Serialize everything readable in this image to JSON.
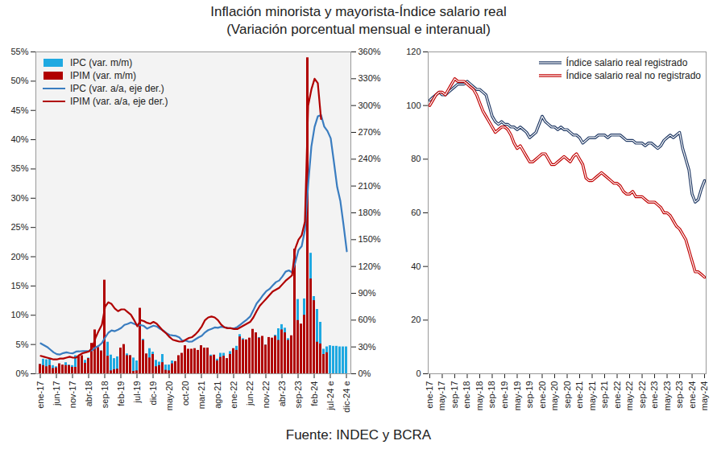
{
  "title": "Inflación minorista y mayorista-Índice salario real",
  "subtitle": "(Variación porcentual mensual e interanual)",
  "caption": "Fuente: INDEC y BCRA",
  "chart_data": [
    {
      "type": "bar",
      "legend": "top-left",
      "categories": [
        "ene-17",
        null,
        null,
        null,
        null,
        "jun-17",
        null,
        null,
        null,
        null,
        "nov-17",
        null,
        null,
        null,
        null,
        "abr-18",
        null,
        null,
        null,
        null,
        "sep-18",
        null,
        null,
        null,
        null,
        "feb-19",
        null,
        null,
        null,
        null,
        "jul-19",
        null,
        null,
        null,
        null,
        "dic-19",
        null,
        null,
        null,
        null,
        "may-20",
        null,
        null,
        null,
        null,
        "oct-20",
        null,
        null,
        null,
        null,
        "mar-21",
        null,
        null,
        null,
        null,
        "ago-21",
        null,
        null,
        null,
        null,
        "ene-22",
        null,
        null,
        null,
        null,
        "jun-22",
        null,
        null,
        null,
        null,
        "nov-22",
        null,
        null,
        null,
        null,
        "abr-23",
        null,
        null,
        null,
        null,
        "sep-23",
        null,
        null,
        null,
        null,
        "feb-24",
        null,
        null,
        null,
        null,
        "jul-24 e",
        null,
        null,
        null,
        null,
        "dic-24 e"
      ],
      "ylim": [
        0,
        55
      ],
      "yticks": [
        {
          "value": 0,
          "label": "0%"
        },
        {
          "value": 5,
          "label": "5%"
        },
        {
          "value": 10,
          "label": "10%"
        },
        {
          "value": 15,
          "label": "15%"
        },
        {
          "value": 20,
          "label": "20%"
        },
        {
          "value": 25,
          "label": "25%"
        },
        {
          "value": 30,
          "label": "30%"
        },
        {
          "value": 35,
          "label": "35%"
        },
        {
          "value": 40,
          "label": "40%"
        },
        {
          "value": 45,
          "label": "45%"
        },
        {
          "value": 50,
          "label": "50%"
        },
        {
          "value": 55,
          "label": "55%"
        }
      ],
      "y2lim": [
        0,
        360
      ],
      "y2ticks": [
        {
          "value": 0,
          "label": "0%"
        },
        {
          "value": 30,
          "label": "30%"
        },
        {
          "value": 60,
          "label": "60%"
        },
        {
          "value": 90,
          "label": "90%"
        },
        {
          "value": 120,
          "label": "120%"
        },
        {
          "value": 150,
          "label": "150%"
        },
        {
          "value": 180,
          "label": "180%"
        },
        {
          "value": 210,
          "label": "210%"
        },
        {
          "value": 240,
          "label": "240%"
        },
        {
          "value": 270,
          "label": "270%"
        },
        {
          "value": 300,
          "label": "300%"
        },
        {
          "value": 330,
          "label": "330%"
        },
        {
          "value": 360,
          "label": "360%"
        }
      ],
      "series": [
        {
          "name": "IPC (var. m/m)",
          "type": "bar",
          "color": "#1fa9e1",
          "values": [
            1.6,
            2.5,
            2.4,
            2.6,
            1.4,
            1.2,
            1.7,
            1.4,
            1.9,
            1.5,
            1.4,
            3.1,
            1.8,
            2.4,
            2.3,
            2.7,
            2.1,
            3.7,
            3.1,
            3.9,
            6.5,
            5.4,
            3.2,
            2.6,
            2.9,
            3.8,
            4.7,
            3.4,
            3.1,
            2.7,
            2.2,
            4.0,
            5.9,
            3.3,
            4.3,
            3.7,
            2.3,
            2.0,
            3.3,
            1.5,
            1.5,
            2.2,
            1.9,
            2.7,
            2.8,
            3.8,
            3.2,
            4.0,
            4.0,
            3.6,
            4.8,
            4.1,
            3.3,
            3.2,
            3.0,
            2.5,
            3.5,
            3.5,
            2.5,
            3.8,
            3.9,
            4.7,
            6.7,
            6.0,
            5.1,
            5.3,
            7.4,
            7.0,
            6.2,
            6.3,
            4.9,
            5.1,
            6.0,
            6.6,
            7.7,
            8.4,
            7.8,
            6.0,
            6.3,
            12.4,
            12.7,
            8.3,
            12.8,
            25.5,
            20.6,
            13.2,
            11.0,
            8.8,
            4.2,
            4.6,
            4.8,
            4.7,
            4.7,
            4.6,
            4.6,
            4.6
          ]
        },
        {
          "name": "IPIM (var. m/m)",
          "type": "bar",
          "color": "#b00000",
          "values": [
            1.6,
            1.4,
            1.2,
            1.4,
            0.9,
            1.0,
            1.7,
            1.5,
            1.4,
            1.4,
            1.1,
            1.1,
            3.0,
            3.1,
            1.8,
            2.6,
            5.2,
            7.5,
            4.5,
            3.9,
            16.0,
            3.0,
            0.5,
            0.7,
            0.8,
            4.4,
            5.0,
            3.1,
            3.1,
            0.4,
            0.5,
            11.2,
            5.7,
            3.4,
            2.7,
            3.3,
            1.2,
            1.4,
            1.9,
            0.6,
            0.5,
            1.7,
            2.1,
            3.1,
            3.5,
            4.8,
            4.2,
            4.2,
            4.3,
            4.0,
            4.8,
            4.4,
            4.4,
            3.0,
            3.2,
            2.2,
            2.8,
            3.0,
            2.6,
            3.3,
            4.3,
            4.0,
            6.3,
            5.8,
            5.8,
            6.1,
            7.6,
            7.0,
            6.1,
            6.4,
            4.9,
            6.2,
            6.1,
            6.4,
            5.7,
            7.5,
            7.0,
            5.7,
            6.5,
            21.3,
            9.1,
            8.5,
            10.0,
            54.0,
            16.2,
            12.5,
            5.4,
            5.1,
            3.3,
            3.6,
            null,
            null,
            null,
            null,
            null,
            null
          ]
        },
        {
          "name": "IPC (var. a/a, eje der.)",
          "type": "line",
          "axis": "y2",
          "color": "#3a7dc0",
          "values": [
            34,
            32,
            30,
            27,
            24,
            21.9,
            21.5,
            23.1,
            24.0,
            23.2,
            22.9,
            24.8,
            25.0,
            25.4,
            25.4,
            25.5,
            26.3,
            29.5,
            31.2,
            34.4,
            40.5,
            45.9,
            48.5,
            47.6,
            49.3,
            51.3,
            54.7,
            55.8,
            57.3,
            55.8,
            54.4,
            54.5,
            53.5,
            50.5,
            52.1,
            53.8,
            52.9,
            50.3,
            48.4,
            45.6,
            43.4,
            42.8,
            42.4,
            40.7,
            36.6,
            37.2,
            35.8,
            36.1,
            38.5,
            40.7,
            42.6,
            46.3,
            48.8,
            50.2,
            51.8,
            51.4,
            52.5,
            52.1,
            51.2,
            50.9,
            50.7,
            52.3,
            55.1,
            58.0,
            60.7,
            64.0,
            71.0,
            78.5,
            83.0,
            88.0,
            92.4,
            94.8,
            98.8,
            102.5,
            104.3,
            108.8,
            114.2,
            115.6,
            113.4,
            124.4,
            138.3,
            142.7,
            160.9,
            211.4,
            254.2,
            276.2,
            287.9,
            289.4,
            276.4,
            271.5,
            263.4,
            236.7,
            209.0,
            193.0,
            166.0,
            137.0
          ]
        },
        {
          "name": "IPIM (var. a/a, eje der.)",
          "type": "line",
          "axis": "y2",
          "color": "#b00000",
          "values": [
            20,
            19,
            18,
            17,
            16,
            16,
            17,
            17,
            18,
            19,
            18,
            18,
            21,
            23,
            24,
            25,
            29,
            40,
            48,
            55,
            75,
            80,
            78,
            73,
            70,
            72,
            72,
            69,
            66,
            60,
            53,
            60,
            59,
            57,
            56,
            58,
            56,
            52,
            48,
            45,
            41,
            38,
            37,
            36,
            36,
            38,
            40,
            41,
            44,
            48,
            53,
            60,
            63,
            64,
            63,
            60,
            55,
            52,
            51,
            51,
            50,
            50,
            52,
            54,
            56,
            58,
            63,
            70,
            76,
            80,
            84,
            88,
            92,
            94,
            96,
            100,
            104,
            107,
            110,
            140,
            150,
            155,
            170,
            300,
            318,
            330,
            325,
            285,
            null,
            null,
            null,
            null,
            null,
            null,
            null,
            null
          ]
        }
      ]
    },
    {
      "type": "line",
      "legend": "top-right",
      "categories": [
        "ene-17",
        null,
        null,
        null,
        "may-17",
        null,
        null,
        null,
        "sep-17",
        null,
        null,
        null,
        "ene-18",
        null,
        null,
        null,
        "may-18",
        null,
        null,
        null,
        "sep-18",
        null,
        null,
        null,
        "ene-19",
        null,
        null,
        null,
        "may-19",
        null,
        null,
        null,
        "sep-19",
        null,
        null,
        null,
        "ene-20",
        null,
        null,
        null,
        "may-20",
        null,
        null,
        null,
        "sep-20",
        null,
        null,
        null,
        "ene-21",
        null,
        null,
        null,
        "may-21",
        null,
        null,
        null,
        "sep-21",
        null,
        null,
        null,
        "ene-22",
        null,
        null,
        null,
        "may-22",
        null,
        null,
        null,
        "sep-22",
        null,
        null,
        null,
        "ene-23",
        null,
        null,
        null,
        "may-23",
        null,
        null,
        null,
        "sep-23",
        null,
        null,
        null,
        "ene-24",
        null,
        null,
        null,
        "may-24"
      ],
      "ylim": [
        0,
        120
      ],
      "yticks": [
        0,
        20,
        40,
        60,
        80,
        100,
        120
      ],
      "series": [
        {
          "name": "Índice salario real registrado",
          "color": "#1f3864",
          "line_style": "double",
          "values": [
            102,
            103,
            104,
            105,
            104,
            104,
            105,
            106,
            107,
            108,
            108,
            108,
            109,
            108,
            107,
            106,
            106,
            105,
            104,
            100,
            96,
            94,
            93,
            94,
            93,
            93,
            92,
            92,
            91,
            92,
            91,
            90,
            88,
            89,
            90,
            93,
            96,
            94,
            93,
            92,
            92,
            91,
            92,
            91,
            91,
            90,
            89,
            89,
            88,
            86,
            87,
            88,
            88,
            88,
            89,
            89,
            89,
            88,
            89,
            89,
            89,
            89,
            88,
            87,
            87,
            87,
            86,
            86,
            86,
            85,
            86,
            86,
            85,
            84,
            85,
            87,
            88,
            89,
            88,
            89,
            90,
            84,
            80,
            76,
            67,
            64,
            65,
            69,
            72
          ]
        },
        {
          "name": "Índice salario real no registrado",
          "color": "#c00000",
          "line_style": "double",
          "values": [
            100,
            102,
            104,
            105,
            105,
            104,
            106,
            108,
            110,
            109,
            109,
            109,
            108,
            107,
            106,
            104,
            101,
            98,
            96,
            94,
            92,
            90,
            91,
            92,
            92,
            91,
            89,
            86,
            84,
            85,
            83,
            81,
            79,
            79,
            80,
            81,
            82,
            82,
            80,
            78,
            78,
            79,
            80,
            81,
            80,
            79,
            81,
            82,
            80,
            78,
            73,
            72,
            72,
            73,
            74,
            75,
            74,
            73,
            72,
            71,
            71,
            70,
            68,
            67,
            67,
            68,
            66,
            66,
            66,
            65,
            64,
            64,
            64,
            63,
            62,
            60,
            60,
            59,
            57,
            55,
            54,
            52,
            50,
            46,
            42,
            38,
            38,
            37,
            36
          ]
        }
      ]
    }
  ]
}
